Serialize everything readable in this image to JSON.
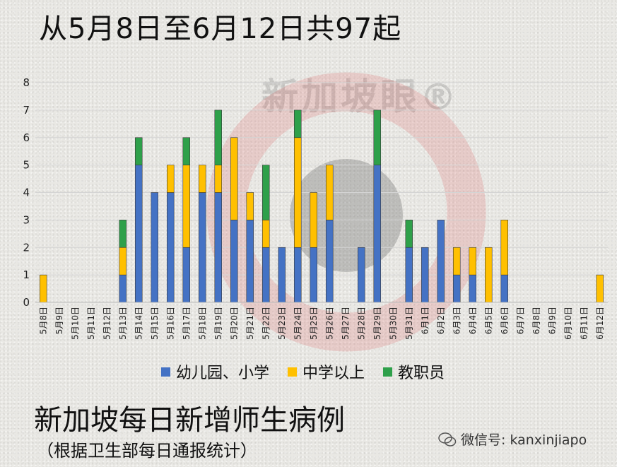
{
  "header": {
    "title": "从5月8日至6月12日共97起"
  },
  "footer": {
    "title": "新加坡每日新增师生病例",
    "subtitle": "（根据卫生部每日通报统计）",
    "credit": "微信号: kanxinjiapo"
  },
  "watermark": {
    "text": "新加坡眼®"
  },
  "colors": {
    "blue": "#4472C4",
    "orange": "#FFC000",
    "green": "#2EA04A",
    "watermark_red": "#e07070"
  },
  "chart_data": {
    "type": "bar",
    "stacked": true,
    "categories": [
      "5月8日",
      "5月9日",
      "5月10日",
      "5月11日",
      "5月12日",
      "5月13日",
      "5月14日",
      "5月15日",
      "5月16日",
      "5月17日",
      "5月18日",
      "5月19日",
      "5月20日",
      "5月21日",
      "5月22日",
      "5月23日",
      "5月24日",
      "5月25日",
      "5月26日",
      "5月27日",
      "5月28日",
      "5月29日",
      "5月30日",
      "5月31日",
      "6月1日",
      "6月2日",
      "6月3日",
      "6月4日",
      "6月5日",
      "6月6日",
      "6月7日",
      "6月8日",
      "6月9日",
      "6月10日",
      "6月11日",
      "6月12日"
    ],
    "series": [
      {
        "name": "幼儿园、小学",
        "color": "#4472C4",
        "values": [
          0,
          0,
          0,
          0,
          0,
          1,
          5,
          4,
          4,
          2,
          4,
          4,
          3,
          3,
          2,
          2,
          2,
          2,
          3,
          0,
          2,
          5,
          0,
          2,
          2,
          3,
          1,
          1,
          0,
          1,
          0,
          0,
          0,
          0,
          0,
          0
        ]
      },
      {
        "name": "中学以上",
        "color": "#FFC000",
        "values": [
          1,
          0,
          0,
          0,
          0,
          1,
          0,
          0,
          1,
          3,
          1,
          1,
          3,
          1,
          1,
          0,
          4,
          2,
          2,
          0,
          0,
          0,
          0,
          0,
          0,
          0,
          1,
          1,
          2,
          2,
          0,
          0,
          0,
          0,
          0,
          1
        ]
      },
      {
        "name": "教职员",
        "color": "#2EA04A",
        "values": [
          0,
          0,
          0,
          0,
          0,
          1,
          1,
          0,
          0,
          1,
          0,
          2,
          0,
          0,
          2,
          0,
          1,
          0,
          0,
          0,
          0,
          2,
          0,
          1,
          0,
          0,
          0,
          0,
          0,
          0,
          0,
          0,
          0,
          0,
          0,
          0
        ]
      }
    ],
    "ylim": [
      0,
      8
    ],
    "yticks": [
      "0",
      "1",
      "2",
      "3",
      "4",
      "5",
      "6",
      "7",
      "8"
    ],
    "grid": true,
    "legend_position": "bottom"
  }
}
